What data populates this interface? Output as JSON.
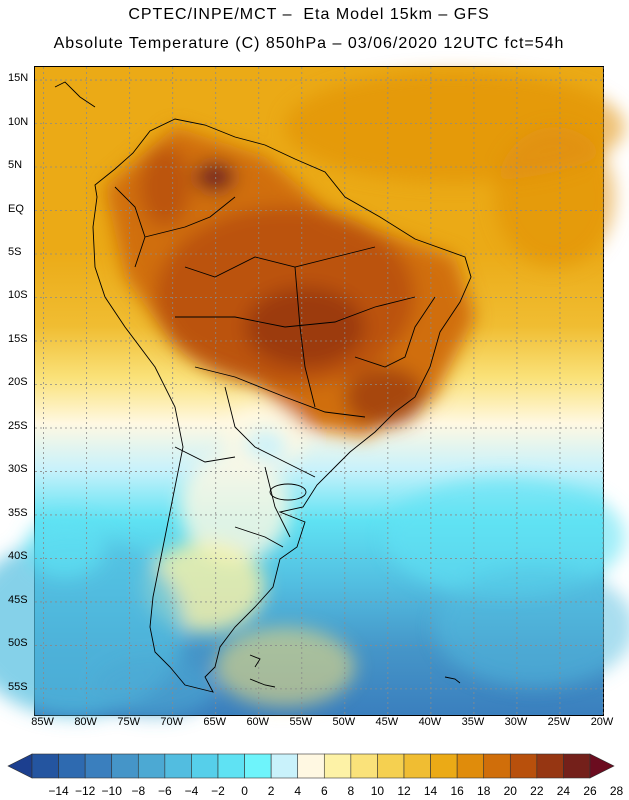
{
  "header": {
    "line1": "CPTEC/INPE/MCT –  Eta Model 15km – GFS",
    "line2": "Absolute Temperature (C) 850hPa – 03/06/2020 12UTC fct=54h"
  },
  "map": {
    "variable": "Absolute Temperature (C) 850hPa",
    "lat_labels": [
      "15N",
      "10N",
      "5N",
      "EQ",
      "5S",
      "10S",
      "15S",
      "20S",
      "25S",
      "30S",
      "35S",
      "40S",
      "45S",
      "50S",
      "55S"
    ],
    "lon_labels": [
      "85W",
      "80W",
      "75W",
      "70W",
      "65W",
      "60W",
      "55W",
      "50W",
      "45W",
      "40W",
      "35W",
      "30W",
      "25W",
      "20W"
    ],
    "lat_range": [
      -58,
      16.5
    ],
    "lon_range": [
      -86,
      -20
    ]
  },
  "legend": {
    "labels": [
      "-14",
      "-12",
      "-10",
      "-8",
      "-6",
      "-4",
      "-2",
      "0",
      "2",
      "4",
      "6",
      "8",
      "10",
      "12",
      "14",
      "16",
      "18",
      "20",
      "22",
      "24",
      "26",
      "28"
    ],
    "colors": [
      "#1c3f8f",
      "#2455a0",
      "#2e6ab0",
      "#3a7fbe",
      "#4595c8",
      "#4ca9d3",
      "#52bde0",
      "#56cfea",
      "#5fe2f3",
      "#6ef4fb",
      "#c9f2fb",
      "#fff8e2",
      "#fdf2a6",
      "#fae27a",
      "#f5d050",
      "#f0bd32",
      "#ebaa16",
      "#e08c0b",
      "#d06e0a",
      "#b8500c",
      "#963612",
      "#74201a",
      "#6b0c1f"
    ]
  }
}
